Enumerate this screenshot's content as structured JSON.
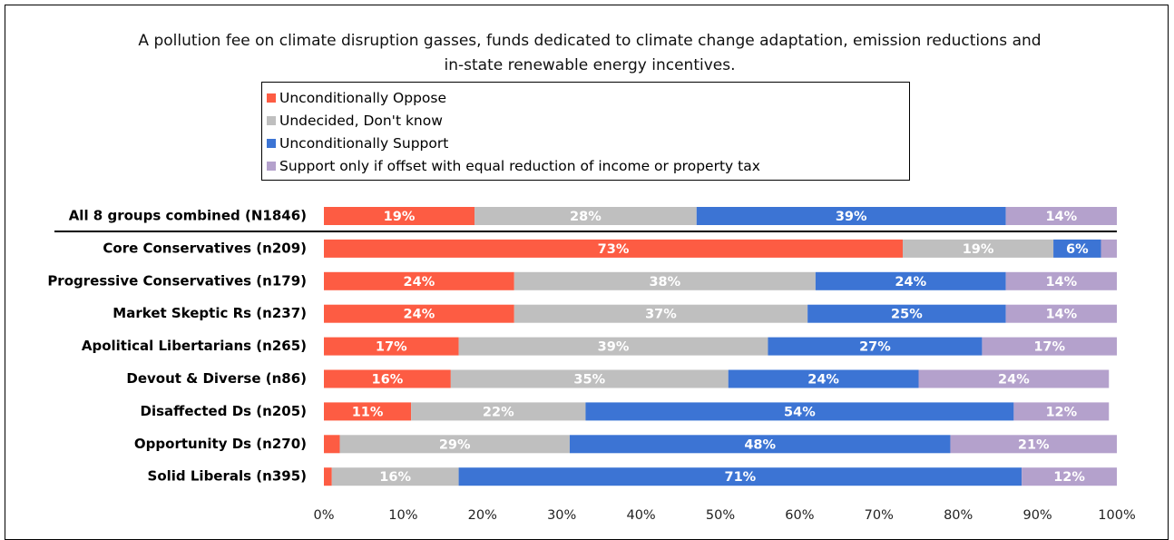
{
  "chart_data": {
    "type": "stacked_bar_horizontal",
    "title": "A pollution fee on climate disruption gasses, funds dedicated to climate change adaptation, emission reductions and in-state renewable energy incentives.",
    "categories": [
      "All 8 groups combined (N1846)",
      "Core Conservatives (n209)",
      "Progressive Conservatives (n179)",
      "Market Skeptic Rs (n237)",
      "Apolitical Libertarians (n265)",
      "Devout & Diverse (n86)",
      "Disaffected Ds (n205)",
      "Opportunity Ds (n270)",
      "Solid Liberals (n395)"
    ],
    "series": [
      {
        "name": "Unconditionally Oppose",
        "color": "#fd5c43",
        "values": [
          19,
          73,
          24,
          24,
          17,
          16,
          11,
          2,
          1
        ],
        "value_labels": [
          "19%",
          "73%",
          "24%",
          "24%",
          "17%",
          "16%",
          "11%",
          null,
          null
        ]
      },
      {
        "name": "Undecided, Don't know",
        "color": "#bfbfbf",
        "values": [
          28,
          19,
          38,
          37,
          39,
          35,
          22,
          29,
          16
        ],
        "value_labels": [
          "28%",
          "19%",
          "38%",
          "37%",
          "39%",
          "35%",
          "22%",
          "29%",
          "16%"
        ]
      },
      {
        "name": "Unconditionally Support",
        "color": "#3c74d4",
        "values": [
          39,
          6,
          24,
          25,
          27,
          24,
          54,
          48,
          71
        ],
        "value_labels": [
          "39%",
          "6%",
          "24%",
          "25%",
          "27%",
          "24%",
          "54%",
          "48%",
          "71%"
        ]
      },
      {
        "name": "Support only if offset with equal reduction of income or property tax",
        "color": "#b4a1cc",
        "values": [
          14,
          2,
          14,
          14,
          17,
          24,
          12,
          21,
          12
        ],
        "value_labels": [
          "14%",
          null,
          "14%",
          "14%",
          "17%",
          "24%",
          "12%",
          "21%",
          "12%"
        ]
      }
    ],
    "xlim": [
      0,
      100
    ],
    "xticks": [
      {
        "value": 0,
        "label": "0%"
      },
      {
        "value": 10,
        "label": "10%"
      },
      {
        "value": 20,
        "label": "20%"
      },
      {
        "value": 30,
        "label": "30%"
      },
      {
        "value": 40,
        "label": "40%"
      },
      {
        "value": 50,
        "label": "50%"
      },
      {
        "value": 60,
        "label": "60%"
      },
      {
        "value": 70,
        "label": "70%"
      },
      {
        "value": 80,
        "label": "80%"
      },
      {
        "value": 90,
        "label": "90%"
      },
      {
        "value": 100,
        "label": "100%"
      }
    ]
  }
}
